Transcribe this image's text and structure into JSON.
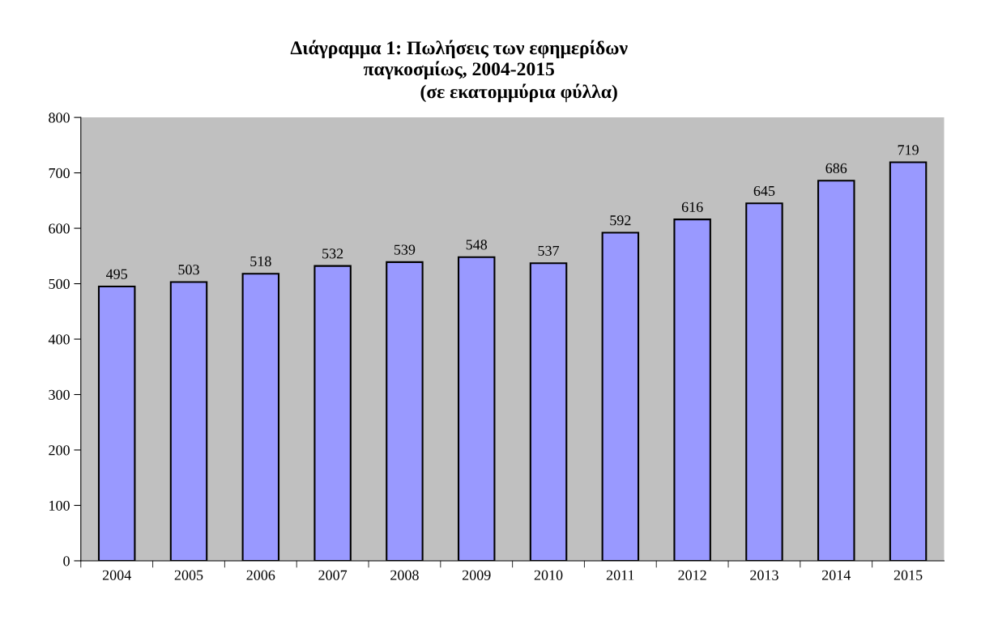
{
  "chart_data": {
    "type": "bar",
    "title": "Διάγραμμα 1: Πωλήσεις των εφημερίδων\nπαγκοσμίως, 2004-2015",
    "subtitle": "(σε εκατομμύρια φύλλα)",
    "categories": [
      "2004",
      "2005",
      "2006",
      "2007",
      "2008",
      "2009",
      "2010",
      "2011",
      "2012",
      "2013",
      "2014",
      "2015"
    ],
    "values": [
      495,
      503,
      518,
      532,
      539,
      548,
      537,
      592,
      616,
      645,
      686,
      719
    ],
    "color": "#9999ff",
    "data_labels": true,
    "ylim": [
      0,
      800
    ],
    "yticks": [
      0,
      100,
      200,
      300,
      400,
      500,
      600,
      700,
      800
    ],
    "grid": false,
    "legend": false
  }
}
